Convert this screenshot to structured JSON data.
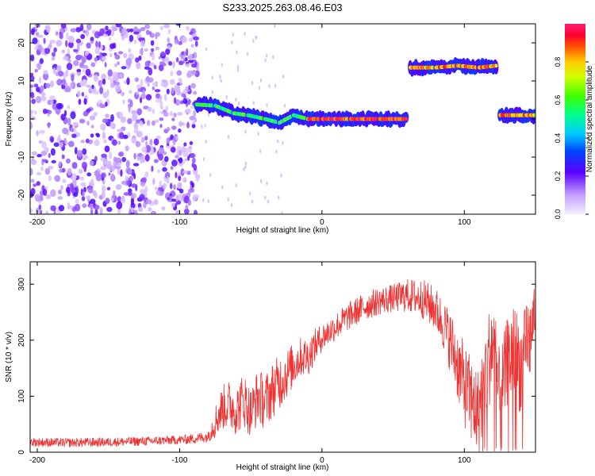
{
  "title": "S233.2025.263.08.46.E03",
  "chart_data": [
    {
      "type": "heatmap",
      "xlabel": "Height of straight line (km)",
      "ylabel": "Frequency (Hz)",
      "xlim": [
        -205,
        150
      ],
      "ylim": [
        -25,
        25
      ],
      "xticks": [
        -200,
        -100,
        0,
        100
      ],
      "yticks": [
        -20,
        -10,
        0,
        10,
        20
      ],
      "xtick_labels": [
        "-200",
        "-100",
        "0",
        "100"
      ],
      "ytick_labels": [
        "-20",
        "-10",
        "0",
        "10",
        "20"
      ],
      "colorbar": {
        "label": "Normalized spectral amplitude",
        "range": [
          0,
          1
        ],
        "ticks": [
          0.0,
          0.2,
          0.4,
          0.6,
          0.8
        ],
        "tick_labels": [
          "0.0",
          "0.2",
          "0.4",
          "0.6",
          "0.8"
        ]
      },
      "ridge": [
        {
          "x": -88,
          "y": 3.8
        },
        {
          "x": -75,
          "y": 3.5
        },
        {
          "x": -62,
          "y": 1.5
        },
        {
          "x": -52,
          "y": 1.0
        },
        {
          "x": -40,
          "y": 0.0
        },
        {
          "x": -30,
          "y": -1.0
        },
        {
          "x": -20,
          "y": 1.0
        },
        {
          "x": -10,
          "y": 0.0
        },
        {
          "x": 0,
          "y": 0.0
        },
        {
          "x": 20,
          "y": 0.0
        },
        {
          "x": 40,
          "y": 0.0
        },
        {
          "x": 60,
          "y": 0.0
        },
        {
          "x": 62,
          "y": 13.5
        },
        {
          "x": 80,
          "y": 13.5
        },
        {
          "x": 95,
          "y": 14.0
        },
        {
          "x": 110,
          "y": 13.5
        },
        {
          "x": 123,
          "y": 14.0
        },
        {
          "x": 125,
          "y": 1.0
        },
        {
          "x": 150,
          "y": 1.0
        }
      ]
    },
    {
      "type": "line",
      "xlabel": "Height of straight line (km)",
      "ylabel": "SNR (10 * v/v)",
      "xlim": [
        -205,
        150
      ],
      "ylim": [
        0,
        340
      ],
      "xticks": [
        -200,
        -100,
        0,
        100
      ],
      "yticks": [
        0,
        100,
        200,
        300
      ],
      "xtick_labels": [
        "-200",
        "-100",
        "0",
        "100"
      ],
      "ytick_labels": [
        "0",
        "100",
        "200",
        "300"
      ],
      "color": "#ee3333",
      "series": [
        {
          "name": "SNR",
          "x": [
            -205,
            -180,
            -150,
            -120,
            -100,
            -90,
            -80,
            -75,
            -70,
            -65,
            -60,
            -55,
            -50,
            -45,
            -40,
            -35,
            -30,
            -25,
            -20,
            -15,
            -10,
            -5,
            0,
            10,
            20,
            30,
            40,
            50,
            60,
            70,
            80,
            85,
            90,
            95,
            100,
            105,
            110,
            115,
            120,
            125,
            130,
            135,
            140,
            145,
            150
          ],
          "values": [
            18,
            17,
            18,
            20,
            22,
            24,
            28,
            55,
            80,
            85,
            75,
            95,
            70,
            100,
            90,
            110,
            125,
            140,
            155,
            170,
            170,
            190,
            205,
            225,
            245,
            260,
            270,
            275,
            280,
            275,
            255,
            230,
            200,
            160,
            120,
            90,
            70,
            140,
            200,
            90,
            160,
            180,
            150,
            190,
            255
          ],
          "spread": [
            8,
            8,
            8,
            8,
            8,
            9,
            10,
            30,
            40,
            45,
            45,
            50,
            45,
            50,
            50,
            50,
            50,
            45,
            40,
            35,
            35,
            30,
            25,
            25,
            25,
            25,
            25,
            25,
            30,
            35,
            40,
            45,
            55,
            65,
            75,
            80,
            80,
            90,
            90,
            85,
            80,
            90,
            85,
            90,
            40
          ]
        }
      ]
    }
  ],
  "colors": {
    "background": "#ffffff",
    "axis": "#000000",
    "snr_line": "#ee3333"
  }
}
